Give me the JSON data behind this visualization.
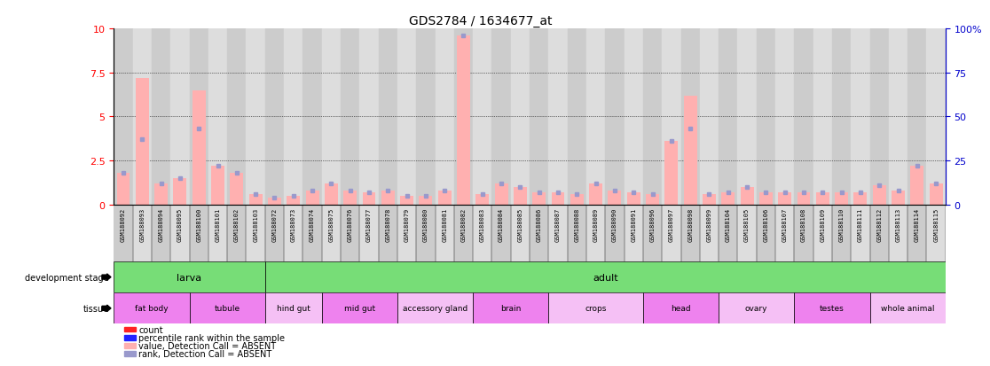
{
  "title": "GDS2784 / 1634677_at",
  "ylim_left": [
    0,
    10
  ],
  "ylim_right": [
    0,
    100
  ],
  "yticks_left": [
    0,
    2.5,
    5.0,
    7.5,
    10
  ],
  "yticks_right": [
    0,
    25,
    50,
    75,
    100
  ],
  "ytick_labels_left": [
    "0",
    "2.5",
    "5",
    "7.5",
    "10"
  ],
  "ytick_labels_right": [
    "0",
    "25",
    "50",
    "75",
    "100%"
  ],
  "samples": [
    "GSM188092",
    "GSM188093",
    "GSM188094",
    "GSM188095",
    "GSM188100",
    "GSM188101",
    "GSM188102",
    "GSM188103",
    "GSM188072",
    "GSM188073",
    "GSM188074",
    "GSM188075",
    "GSM188076",
    "GSM188077",
    "GSM188078",
    "GSM188079",
    "GSM188080",
    "GSM188081",
    "GSM188082",
    "GSM188083",
    "GSM188084",
    "GSM188085",
    "GSM188086",
    "GSM188087",
    "GSM188088",
    "GSM188089",
    "GSM188090",
    "GSM188091",
    "GSM188096",
    "GSM188097",
    "GSM188098",
    "GSM188099",
    "GSM188104",
    "GSM188105",
    "GSM188106",
    "GSM188107",
    "GSM188108",
    "GSM188109",
    "GSM188110",
    "GSM188111",
    "GSM188112",
    "GSM188113",
    "GSM188114",
    "GSM188115"
  ],
  "values": [
    1.8,
    7.2,
    1.2,
    1.5,
    6.5,
    2.2,
    1.8,
    0.6,
    0.4,
    0.5,
    0.8,
    1.2,
    0.8,
    0.7,
    0.8,
    0.5,
    0.5,
    0.8,
    9.6,
    0.6,
    1.2,
    1.0,
    0.7,
    0.7,
    0.6,
    1.2,
    0.8,
    0.7,
    0.6,
    3.6,
    6.2,
    0.6,
    0.7,
    1.0,
    0.7,
    0.7,
    0.7,
    0.7,
    0.7,
    0.7,
    1.1,
    0.8,
    2.2,
    1.2
  ],
  "ranks": [
    18,
    37,
    12,
    15,
    43,
    22,
    18,
    6,
    4,
    5,
    8,
    12,
    8,
    7,
    8,
    5,
    5,
    8,
    96,
    6,
    12,
    10,
    7,
    7,
    6,
    12,
    8,
    7,
    6,
    36,
    43,
    6,
    7,
    10,
    7,
    7,
    7,
    7,
    7,
    7,
    11,
    8,
    22,
    12
  ],
  "absent": [
    true,
    true,
    true,
    true,
    true,
    true,
    true,
    true,
    true,
    true,
    true,
    true,
    true,
    true,
    true,
    true,
    true,
    true,
    true,
    true,
    true,
    true,
    true,
    true,
    true,
    true,
    true,
    true,
    true,
    true,
    true,
    true,
    true,
    true,
    true,
    true,
    true,
    true,
    true,
    true,
    true,
    true,
    true,
    true
  ],
  "dev_stage_groups": [
    {
      "label": "larva",
      "start": 0,
      "end": 7
    },
    {
      "label": "adult",
      "start": 8,
      "end": 43
    }
  ],
  "tissue_groups": [
    {
      "label": "fat body",
      "start": 0,
      "end": 3,
      "color": "#ee82ee"
    },
    {
      "label": "tubule",
      "start": 4,
      "end": 7,
      "color": "#ee82ee"
    },
    {
      "label": "hind gut",
      "start": 8,
      "end": 10,
      "color": "#f5c0f5"
    },
    {
      "label": "mid gut",
      "start": 11,
      "end": 14,
      "color": "#ee82ee"
    },
    {
      "label": "accessory gland",
      "start": 15,
      "end": 18,
      "color": "#f5c0f5"
    },
    {
      "label": "brain",
      "start": 19,
      "end": 22,
      "color": "#ee82ee"
    },
    {
      "label": "crops",
      "start": 23,
      "end": 27,
      "color": "#f5c0f5"
    },
    {
      "label": "head",
      "start": 28,
      "end": 31,
      "color": "#ee82ee"
    },
    {
      "label": "ovary",
      "start": 32,
      "end": 35,
      "color": "#f5c0f5"
    },
    {
      "label": "testes",
      "start": 36,
      "end": 39,
      "color": "#ee82ee"
    },
    {
      "label": "whole animal",
      "start": 40,
      "end": 43,
      "color": "#f5c0f5"
    }
  ],
  "bar_color_present": "#ff2222",
  "bar_color_absent": "#ffb0b0",
  "rank_color_present": "#2222ff",
  "rank_color_absent": "#9999cc",
  "dev_stage_color": "#77dd77",
  "col_bg_even": "#cccccc",
  "col_bg_odd": "#dddddd",
  "background_color": "#ffffff",
  "bar_width": 0.7,
  "legend_items": [
    {
      "label": "count",
      "color": "#ff2222"
    },
    {
      "label": "percentile rank within the sample",
      "color": "#2222ff"
    },
    {
      "label": "value, Detection Call = ABSENT",
      "color": "#ffb0b0"
    },
    {
      "label": "rank, Detection Call = ABSENT",
      "color": "#9999cc"
    }
  ]
}
